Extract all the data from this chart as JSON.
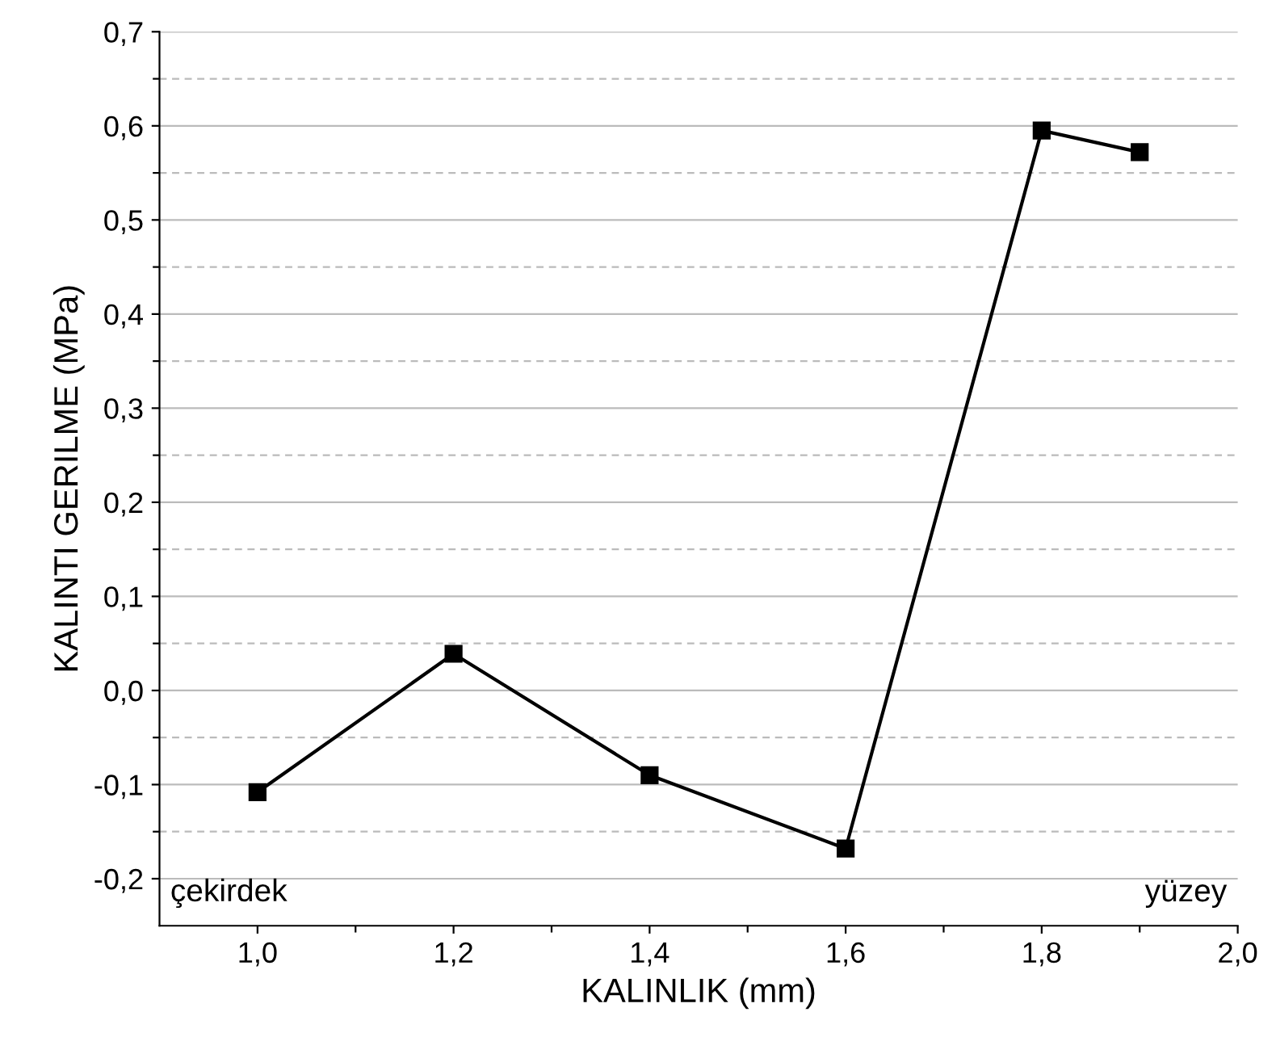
{
  "chart_data": {
    "type": "line",
    "xlabel": "KALINLIK (mm)",
    "ylabel": "KALINTI GERILME (MPa)",
    "x": [
      1.0,
      1.2,
      1.4,
      1.6,
      1.8,
      1.9
    ],
    "series": [
      {
        "color": "#000000",
        "values": [
          -0.108,
          0.039,
          -0.09,
          -0.168,
          0.595,
          0.572
        ]
      }
    ],
    "xlim": [
      0.9,
      2.0
    ],
    "xticks": [
      {
        "value": 1.0,
        "label": "1,0"
      },
      {
        "value": 1.1,
        "label": null
      },
      {
        "value": 1.2,
        "label": "1,2"
      },
      {
        "value": 1.3,
        "label": null
      },
      {
        "value": 1.4,
        "label": "1,4"
      },
      {
        "value": 1.5,
        "label": null
      },
      {
        "value": 1.6,
        "label": "1,6"
      },
      {
        "value": 1.7,
        "label": null
      },
      {
        "value": 1.8,
        "label": "1,8"
      },
      {
        "value": 1.9,
        "label": null
      },
      {
        "value": 2.0,
        "label": "2,0"
      }
    ],
    "ylim": [
      -0.25,
      0.7
    ],
    "yticks": [
      {
        "value": -0.2,
        "label": "-0,2"
      },
      {
        "value": -0.15,
        "label": null
      },
      {
        "value": -0.1,
        "label": "-0,1"
      },
      {
        "value": -0.05,
        "label": null
      },
      {
        "value": 0.0,
        "label": "0,0"
      },
      {
        "value": 0.05,
        "label": null
      },
      {
        "value": 0.1,
        "label": "0,1"
      },
      {
        "value": 0.15,
        "label": null
      },
      {
        "value": 0.2,
        "label": "0,2"
      },
      {
        "value": 0.25,
        "label": null
      },
      {
        "value": 0.3,
        "label": "0,3"
      },
      {
        "value": 0.35,
        "label": null
      },
      {
        "value": 0.4,
        "label": "0,4"
      },
      {
        "value": 0.45,
        "label": null
      },
      {
        "value": 0.5,
        "label": "0,5"
      },
      {
        "value": 0.55,
        "label": null
      },
      {
        "value": 0.6,
        "label": "0,6"
      },
      {
        "value": 0.65,
        "label": null
      },
      {
        "value": 0.7,
        "label": "0,7"
      }
    ],
    "grid": "y",
    "marker": "square",
    "line_style": "solid",
    "legend": false,
    "annotations": [
      "çekirdek",
      "yüzey"
    ]
  }
}
